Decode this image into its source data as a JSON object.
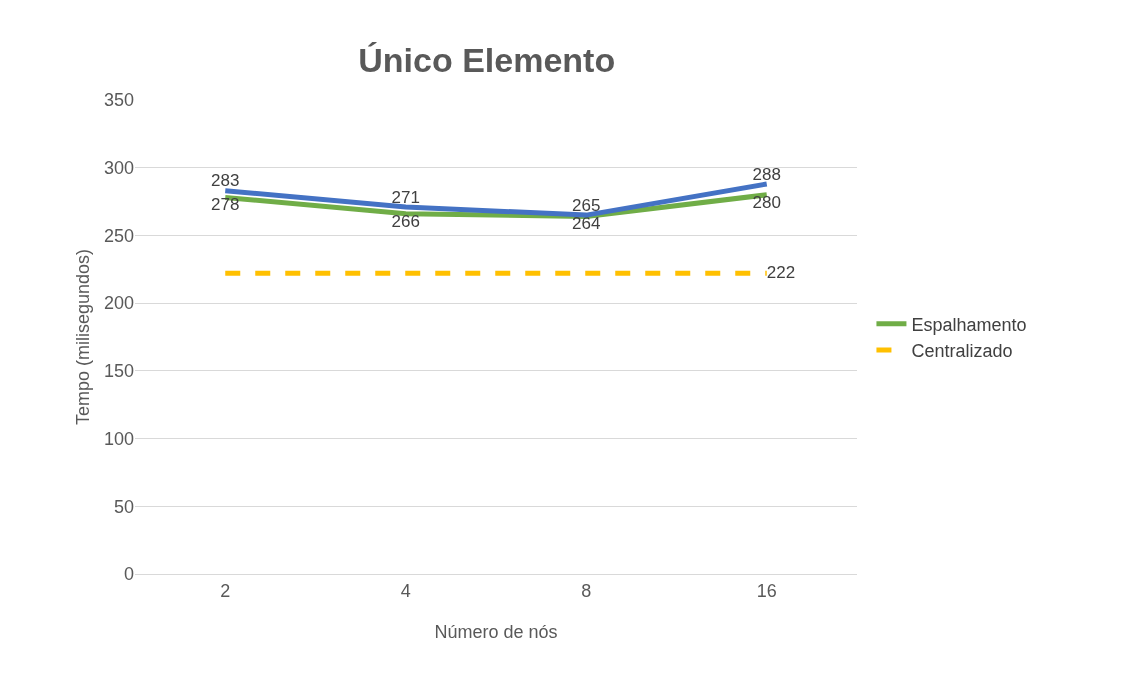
{
  "chart_data": {
    "type": "line",
    "title": "Único Elemento",
    "xlabel": "Número de nós",
    "ylabel": "Tempo (milisegundos)",
    "categories": [
      "2",
      "4",
      "8",
      "16"
    ],
    "series": [
      {
        "name": "Espalhamento",
        "color": "#70ad47",
        "values": [
          278,
          266,
          264,
          280
        ],
        "value_labels": [
          "278",
          "266",
          "264",
          "280"
        ],
        "line_style": "solid"
      },
      {
        "color": "#4472c4",
        "values": [
          283,
          271,
          265,
          288
        ],
        "value_labels": [
          "283",
          "271",
          "265",
          "288"
        ],
        "line_style": "solid"
      },
      {
        "name": "Centralizado",
        "color": "#ffc000",
        "values": [
          222,
          222,
          222,
          222
        ],
        "value_labels": [
          null,
          null,
          null,
          "222"
        ],
        "line_style": "dashed"
      }
    ],
    "ylim": [
      0,
      350
    ],
    "yticks": [
      0,
      50,
      100,
      150,
      200,
      250,
      300,
      350
    ],
    "grid": "y",
    "legend": "right",
    "marker": "none"
  }
}
